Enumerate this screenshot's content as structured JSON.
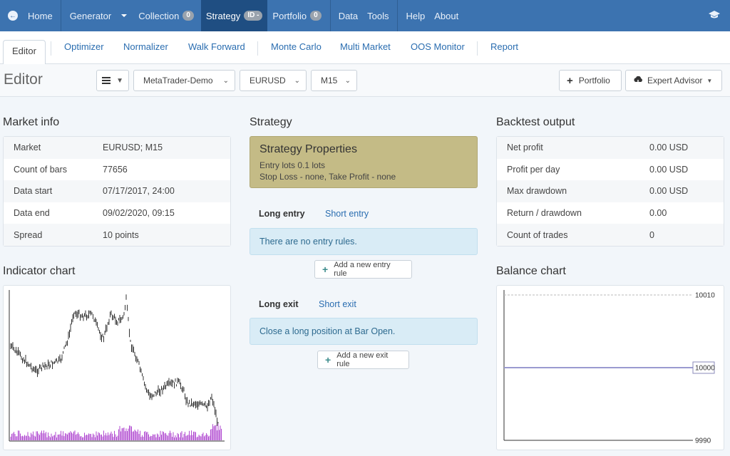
{
  "navbar": {
    "home": "Home",
    "generator": "Generator",
    "collection": "Collection",
    "collection_count": "0",
    "strategy": "Strategy",
    "strategy_badge": "ID -",
    "portfolio": "Portfolio",
    "portfolio_count": "0",
    "data": "Data",
    "tools": "Tools",
    "help": "Help",
    "about": "About"
  },
  "tabs": [
    "Editor",
    "Optimizer",
    "Normalizer",
    "Walk Forward",
    "Monte Carlo",
    "Multi Market",
    "OOS Monitor",
    "Report"
  ],
  "editor": {
    "title": "Editor",
    "menu_icon": "menu-icon",
    "server": "MetaTrader-Demo",
    "symbol": "EURUSD",
    "period": "M15",
    "portfolio_button": "Portfolio",
    "expert_advisor_button": "Expert Advisor"
  },
  "market_info": {
    "title": "Market info",
    "rows": [
      {
        "label": "Market",
        "value": "EURUSD; M15"
      },
      {
        "label": "Count of bars",
        "value": "77656"
      },
      {
        "label": "Data start",
        "value": "07/17/2017, 24:00"
      },
      {
        "label": "Data end",
        "value": "09/02/2020, 09:15"
      },
      {
        "label": "Spread",
        "value": "10 points"
      }
    ]
  },
  "strategy": {
    "title": "Strategy",
    "properties_title": "Strategy Properties",
    "properties_line1": "Entry lots 0.1 lots",
    "properties_line2": "Stop Loss - none, Take Profit - none",
    "long_entry": "Long entry",
    "short_entry": "Short entry",
    "entry_info": "There are no entry rules.",
    "add_entry": "Add a new entry rule",
    "long_exit": "Long exit",
    "short_exit": "Short exit",
    "exit_info": "Close a long position at Bar Open.",
    "add_exit": "Add a new exit rule"
  },
  "backtest": {
    "title": "Backtest output",
    "rows": [
      {
        "label": "Net profit",
        "value": "0.00 USD"
      },
      {
        "label": "Profit per day",
        "value": "0.00 USD"
      },
      {
        "label": "Max drawdown",
        "value": "0.00 USD"
      },
      {
        "label": "Return / drawdown",
        "value": "0.00"
      },
      {
        "label": "Count of trades",
        "value": "0"
      }
    ]
  },
  "indicator_chart": {
    "title": "Indicator chart",
    "price_color": "#333333",
    "volume_color": "#b04ad0"
  },
  "balance_chart": {
    "title": "Balance chart",
    "labels": {
      "top": "10010",
      "mid": "10000",
      "bottom": "9990"
    },
    "line_color": "#9a9ad0"
  },
  "chart_data": [
    {
      "type": "line",
      "title": "Balance chart",
      "ylim": [
        9990,
        10010
      ],
      "yticks": [
        9990,
        10000,
        10010
      ],
      "series": [
        {
          "values": [
            10000,
            10000
          ]
        }
      ]
    }
  ]
}
